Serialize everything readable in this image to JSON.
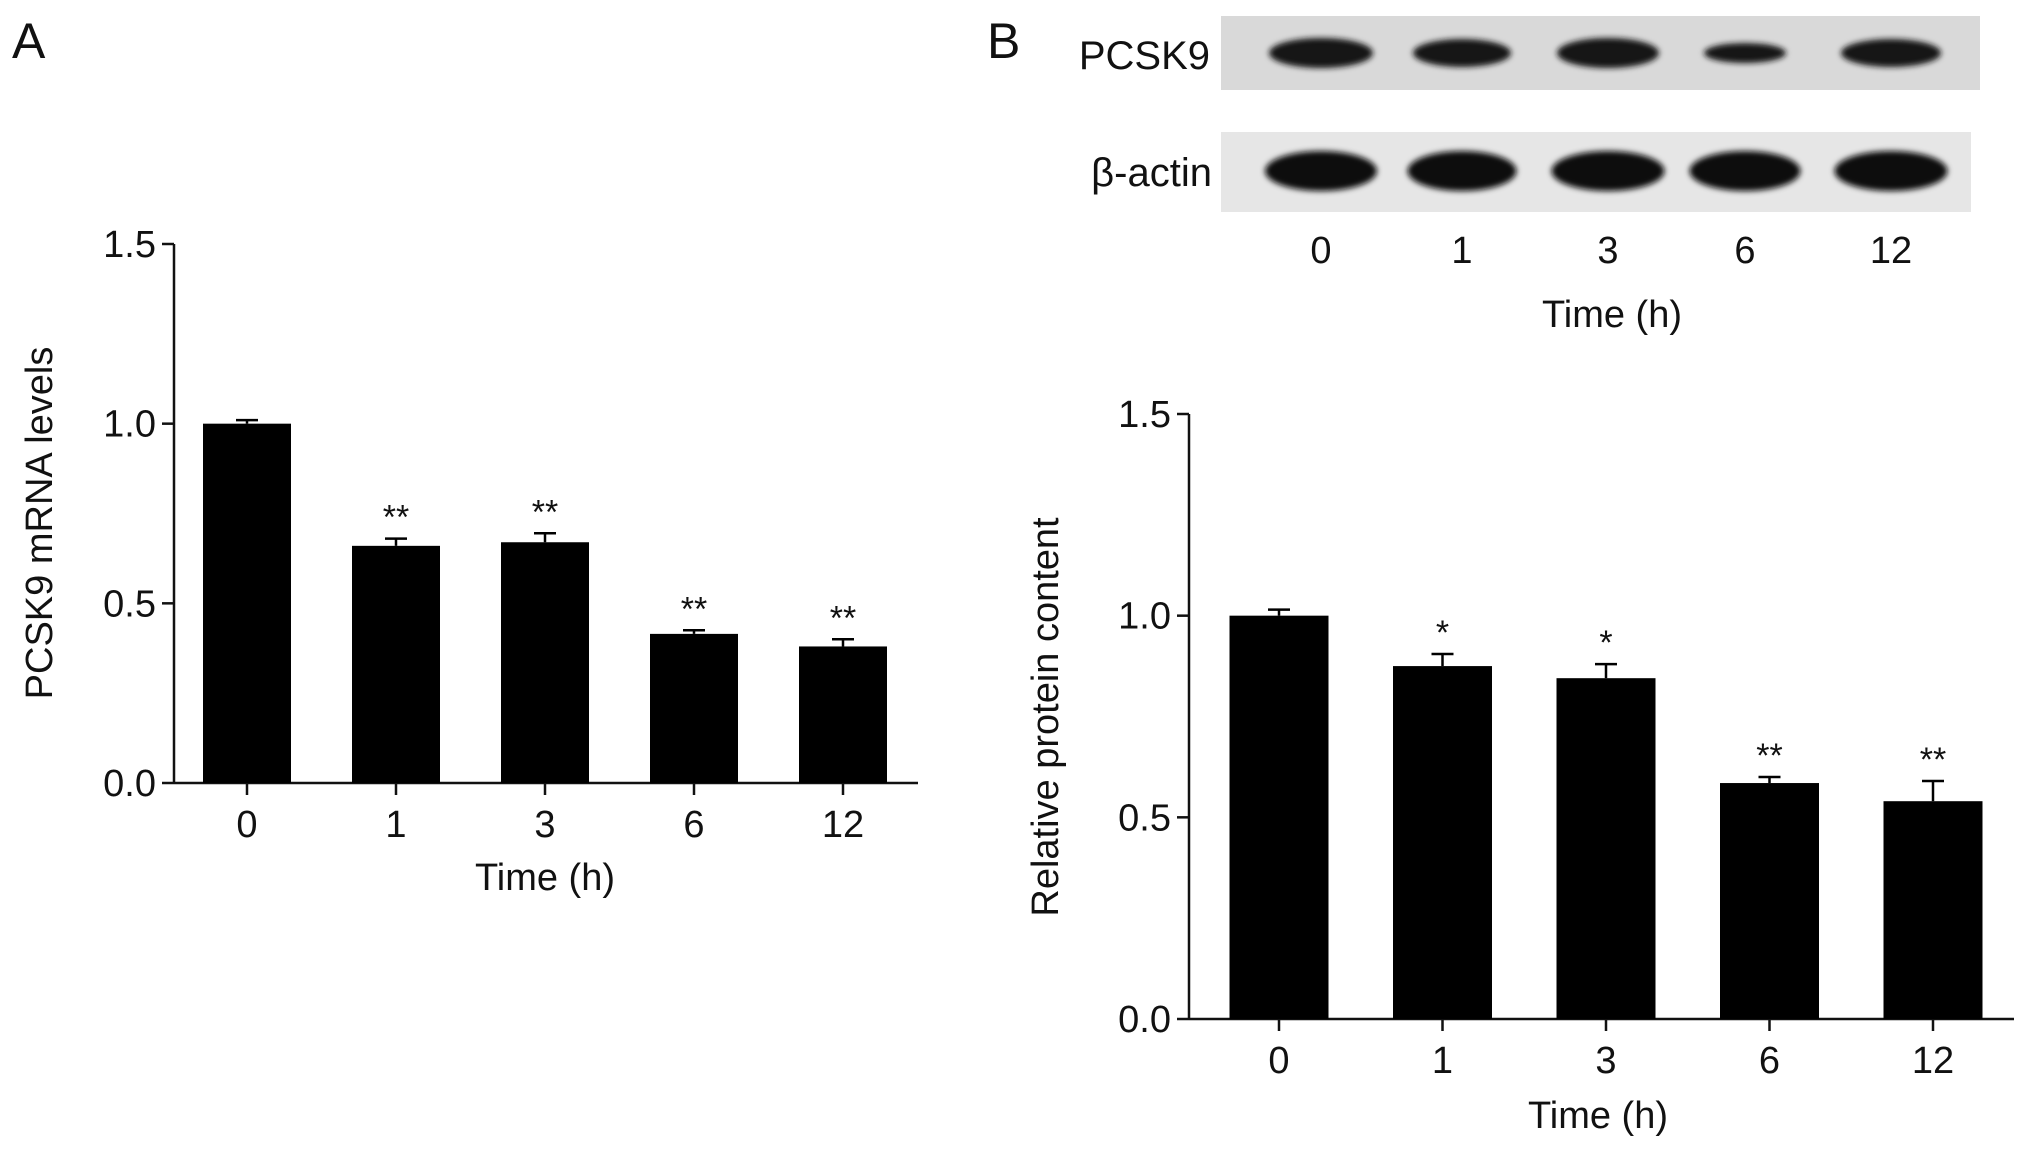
{
  "panels": [
    {
      "label": "A",
      "chart_data": {
        "type": "bar",
        "categories": [
          "0",
          "1",
          "3",
          "6",
          "12"
        ],
        "values": [
          1.0,
          0.66,
          0.67,
          0.415,
          0.38
        ],
        "errors": [
          0.01,
          0.02,
          0.025,
          0.01,
          0.02
        ],
        "significance": [
          "",
          "**",
          "**",
          "**",
          "**"
        ],
        "xlabel": "Time (h)",
        "ylabel": "PCSK9 mRNA levels",
        "ylim": [
          0,
          1.5
        ],
        "yticks": [
          "0.0",
          "0.5",
          "1.0",
          "1.5"
        ],
        "bar_color": "#000000",
        "grid": false
      }
    },
    {
      "label": "B",
      "blot": {
        "rows": [
          "PCSK9",
          "β-actin"
        ],
        "lanes": [
          "0",
          "1",
          "3",
          "6",
          "12"
        ],
        "xlabel": "Time (h)"
      },
      "chart_data": {
        "type": "bar",
        "categories": [
          "0",
          "1",
          "3",
          "6",
          "12"
        ],
        "values": [
          1.0,
          0.875,
          0.845,
          0.585,
          0.54
        ],
        "errors": [
          0.015,
          0.03,
          0.035,
          0.015,
          0.05
        ],
        "significance": [
          "",
          "*",
          "*",
          "**",
          "**"
        ],
        "xlabel": "Time (h)",
        "ylabel": "Relative protein content",
        "ylim": [
          0,
          1.5
        ],
        "yticks": [
          "0.0",
          "0.5",
          "1.0",
          "1.5"
        ],
        "bar_color": "#000000",
        "grid": false
      }
    }
  ]
}
